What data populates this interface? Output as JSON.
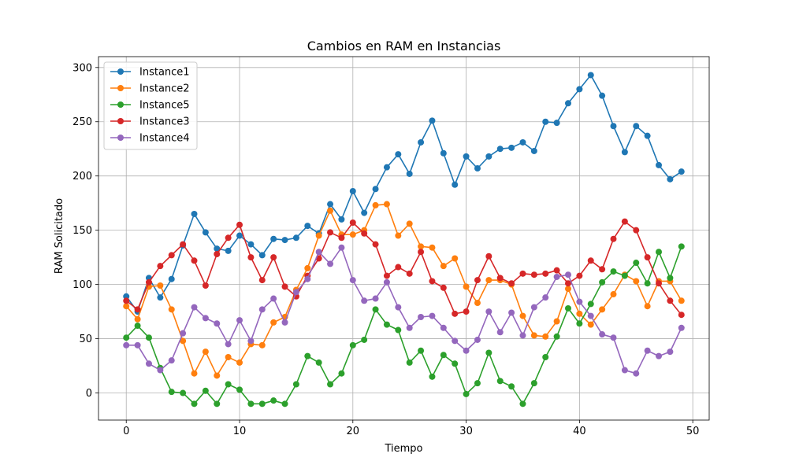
{
  "chart_data": {
    "type": "line",
    "title": "Cambios en RAM en Instancias",
    "xlabel": "Tiempo",
    "ylabel": "RAM Solicitado",
    "xlim": [
      -2.45,
      51.45
    ],
    "ylim": [
      -25,
      310
    ],
    "x_ticks": [
      0,
      10,
      20,
      30,
      40,
      50
    ],
    "y_ticks": [
      0,
      50,
      100,
      150,
      200,
      250,
      300
    ],
    "grid": true,
    "legend_position": "top-left",
    "markers": "circle",
    "x": [
      0,
      1,
      2,
      3,
      4,
      5,
      6,
      7,
      8,
      9,
      10,
      11,
      12,
      13,
      14,
      15,
      16,
      17,
      18,
      19,
      20,
      21,
      22,
      23,
      24,
      25,
      26,
      27,
      28,
      29,
      30,
      31,
      32,
      33,
      34,
      35,
      36,
      37,
      38,
      39,
      40,
      41,
      42,
      43,
      44,
      45,
      46,
      47,
      48,
      49
    ],
    "series": [
      {
        "name": "Instance1",
        "color": "#1f77b4",
        "values": [
          89,
          75,
          106,
          88,
          105,
          136,
          165,
          148,
          133,
          131,
          145,
          137,
          127,
          142,
          141,
          143,
          154,
          147,
          174,
          160,
          186,
          166,
          188,
          208,
          220,
          202,
          231,
          251,
          221,
          192,
          218,
          207,
          218,
          225,
          226,
          231,
          223,
          250,
          249,
          267,
          280,
          293,
          274,
          246,
          222,
          246,
          237,
          210,
          197,
          204
        ]
      },
      {
        "name": "Instance2",
        "color": "#ff7f0e",
        "values": [
          80,
          68,
          98,
          99,
          77,
          48,
          18,
          38,
          16,
          33,
          28,
          45,
          44,
          65,
          70,
          95,
          115,
          145,
          168,
          146,
          146,
          150,
          173,
          174,
          145,
          156,
          135,
          134,
          117,
          124,
          98,
          83,
          104,
          104,
          100,
          71,
          53,
          52,
          66,
          96,
          73,
          63,
          77,
          91,
          109,
          103,
          80,
          103,
          103,
          85
        ]
      },
      {
        "name": "Instance5",
        "color": "#2ca02c",
        "values": [
          51,
          62,
          51,
          23,
          1,
          0,
          -10,
          2,
          -10,
          8,
          3,
          -10,
          -10,
          -7,
          -10,
          8,
          34,
          28,
          8,
          18,
          44,
          49,
          77,
          63,
          58,
          28,
          39,
          15,
          35,
          27,
          -1,
          9,
          37,
          11,
          6,
          -10,
          9,
          33,
          52,
          78,
          64,
          82,
          102,
          112,
          108,
          120,
          101,
          130,
          106,
          135
        ]
      },
      {
        "name": "Instance3",
        "color": "#d62728",
        "values": [
          85,
          77,
          102,
          117,
          127,
          137,
          122,
          99,
          128,
          143,
          155,
          125,
          104,
          125,
          98,
          89,
          108,
          124,
          148,
          143,
          157,
          147,
          137,
          108,
          116,
          110,
          130,
          103,
          97,
          73,
          75,
          104,
          126,
          106,
          101,
          110,
          109,
          110,
          113,
          101,
          108,
          122,
          114,
          142,
          158,
          150,
          125,
          101,
          85,
          72
        ]
      },
      {
        "name": "Instance4",
        "color": "#9467bd",
        "values": [
          44,
          44,
          27,
          21,
          30,
          55,
          79,
          69,
          64,
          45,
          67,
          48,
          77,
          87,
          65,
          93,
          105,
          130,
          119,
          134,
          104,
          85,
          87,
          102,
          79,
          60,
          70,
          71,
          60,
          48,
          39,
          49,
          75,
          56,
          74,
          53,
          79,
          88,
          107,
          109,
          84,
          71,
          54,
          51,
          21,
          18,
          39,
          34,
          38,
          60
        ]
      }
    ]
  }
}
